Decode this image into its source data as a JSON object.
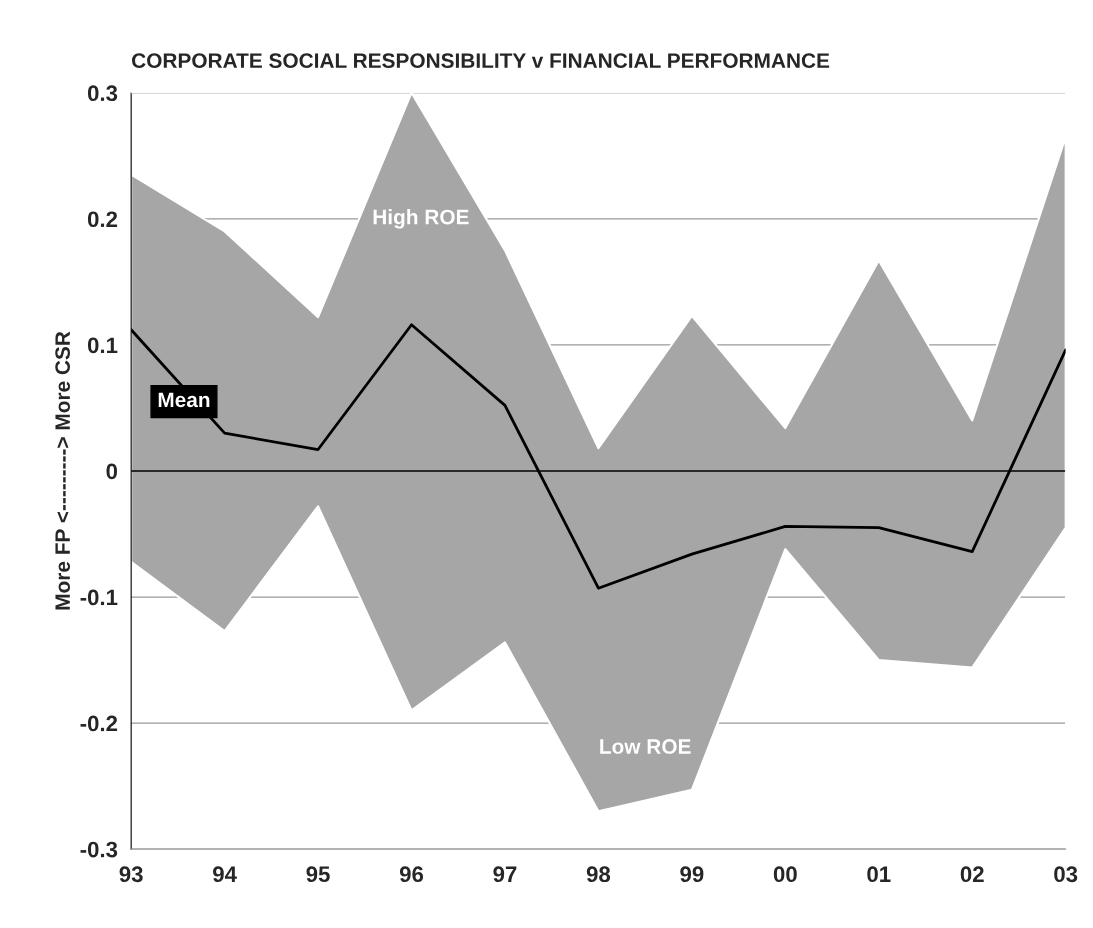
{
  "chart_data": {
    "type": "line",
    "title": "CORPORATE SOCIAL RESPONSIBILITY v FINANCIAL PERFORMANCE",
    "ylabel": "More FP <---------> More CSR",
    "categories": [
      "93",
      "94",
      "95",
      "96",
      "97",
      "98",
      "99",
      "00",
      "01",
      "02",
      "03"
    ],
    "series": [
      {
        "name": "Mean",
        "color": "#000000",
        "values": [
          0.112,
          0.03,
          0.017,
          0.116,
          0.052,
          -0.093,
          -0.066,
          -0.044,
          -0.045,
          -0.064,
          0.096
        ],
        "lower": [
          -0.072,
          -0.127,
          -0.028,
          -0.19,
          -0.136,
          -0.27,
          -0.253,
          -0.062,
          -0.15,
          -0.156,
          -0.045
        ],
        "upper": [
          0.235,
          0.19,
          0.122,
          0.3,
          0.175,
          0.018,
          0.123,
          0.034,
          0.167,
          0.04,
          0.265
        ]
      }
    ],
    "annotations": [
      "High ROE",
      "Low ROE"
    ],
    "ylim": [
      -0.3,
      0.3
    ],
    "yticks": [
      -0.3,
      -0.2,
      -0.1,
      0,
      0.1,
      0.2,
      0.3
    ],
    "grid": "y",
    "legend": false,
    "marker": "none",
    "line_style": "solid"
  }
}
